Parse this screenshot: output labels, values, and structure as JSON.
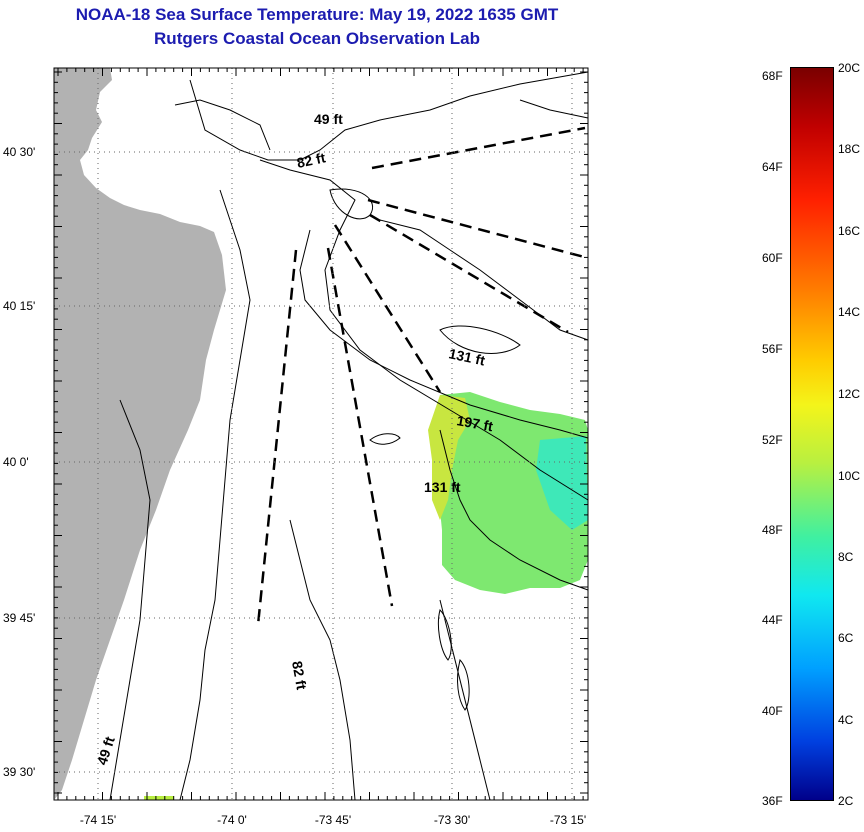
{
  "title": "NOAA-18 Sea Surface Temperature:  May 19, 2022 1635 GMT",
  "subtitle": "Rutgers Coastal Ocean Observation Lab",
  "map": {
    "lat_labels": [
      "40 30'",
      "40 15'",
      "40 0'",
      "39 45'",
      "39 30'"
    ],
    "lon_labels": [
      "-74 15'",
      "-74 0'",
      "-73 45'",
      "-73 30'",
      "-73 15'"
    ],
    "depth_labels": [
      "49 ft",
      "82 ft",
      "131 ft",
      "197 ft",
      "131 ft",
      "82 ft",
      "49 ft"
    ],
    "grid": true,
    "land_color": "#b2b2b2",
    "sst_color_warm": "#d8ea2c",
    "sst_color_cool": "#5cf0a4"
  },
  "colorbar": {
    "fahrenheit": [
      "68F",
      "64F",
      "60F",
      "56F",
      "52F",
      "48F",
      "44F",
      "40F",
      "36F"
    ],
    "celsius": [
      "20C",
      "18C",
      "16C",
      "14C",
      "12C",
      "10C",
      "8C",
      "6C",
      "4C",
      "2C"
    ]
  }
}
